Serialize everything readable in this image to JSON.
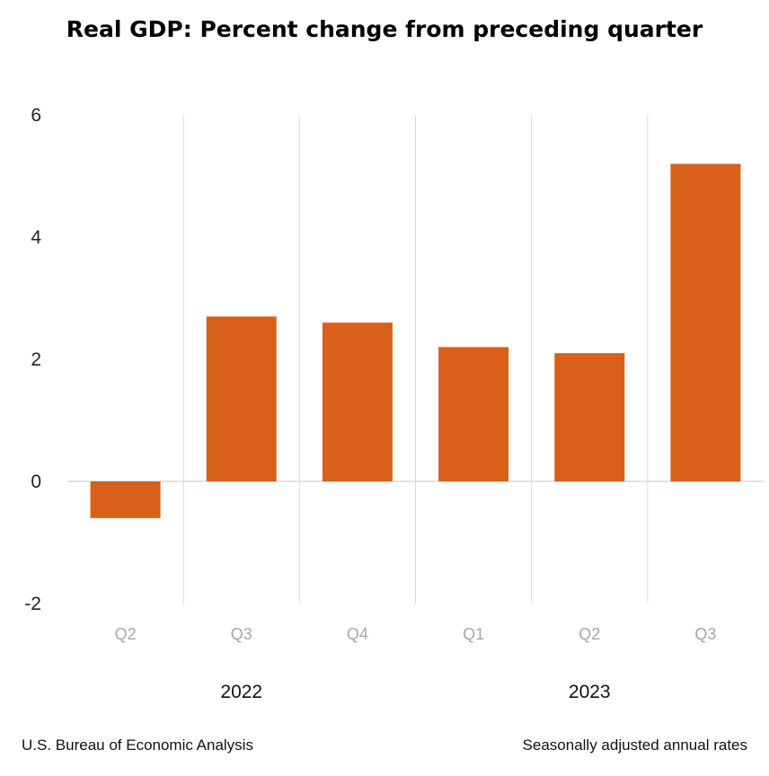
{
  "chart_data": {
    "type": "bar",
    "title": "Real GDP:  Percent change from preceding quarter",
    "categories": [
      "Q2",
      "Q3",
      "Q4",
      "Q1",
      "Q2",
      "Q3"
    ],
    "groups": [
      {
        "label": "2022",
        "categories": [
          "Q2",
          "Q3",
          "Q4"
        ]
      },
      {
        "label": "2023",
        "categories": [
          "Q1",
          "Q2",
          "Q3"
        ]
      }
    ],
    "values": [
      -0.6,
      2.7,
      2.6,
      2.2,
      2.1,
      5.2
    ],
    "ylim": [
      -2,
      6
    ],
    "yticks": [
      "6",
      "4",
      "2",
      "0",
      "-2"
    ],
    "xlabel": "",
    "ylabel": "",
    "bar_color": "#d9601a",
    "grid": true
  },
  "footer": {
    "source": "U.S. Bureau of Economic Analysis",
    "note": "Seasonally adjusted annual rates"
  }
}
